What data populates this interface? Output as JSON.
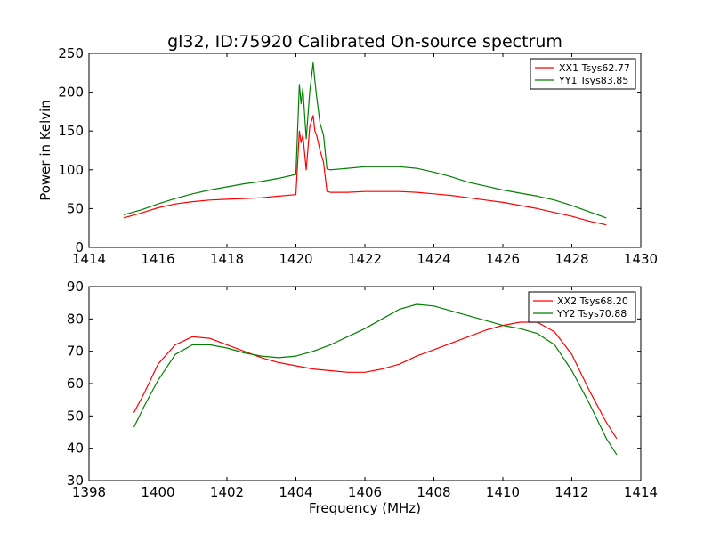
{
  "chart_data": [
    {
      "type": "line",
      "title": "gl32, ID:75920 Calibrated On-source spectrum",
      "xlabel": "",
      "ylabel": "Power in Kelvin",
      "xlim": [
        1414,
        1430
      ],
      "ylim": [
        0,
        250
      ],
      "xticks": [
        1414,
        1416,
        1418,
        1420,
        1422,
        1424,
        1426,
        1428,
        1430
      ],
      "yticks": [
        0,
        50,
        100,
        150,
        200,
        250
      ],
      "grid": false,
      "legend_position": "top-right",
      "series": [
        {
          "name": "XX1 Tsys62.77",
          "color": "#ff0000",
          "points": [
            [
              1415.0,
              38
            ],
            [
              1415.5,
              44
            ],
            [
              1416.0,
              51
            ],
            [
              1416.5,
              56
            ],
            [
              1417.0,
              59
            ],
            [
              1417.5,
              61
            ],
            [
              1418.0,
              62
            ],
            [
              1418.5,
              63
            ],
            [
              1419.0,
              64
            ],
            [
              1419.5,
              66
            ],
            [
              1420.0,
              68
            ],
            [
              1420.1,
              150
            ],
            [
              1420.15,
              135
            ],
            [
              1420.2,
              145
            ],
            [
              1420.3,
              100
            ],
            [
              1420.4,
              155
            ],
            [
              1420.5,
              170
            ],
            [
              1420.55,
              150
            ],
            [
              1420.6,
              145
            ],
            [
              1420.7,
              125
            ],
            [
              1420.8,
              110
            ],
            [
              1420.9,
              72
            ],
            [
              1421.0,
              71
            ],
            [
              1421.5,
              71
            ],
            [
              1422.0,
              72
            ],
            [
              1422.5,
              72
            ],
            [
              1423.0,
              72
            ],
            [
              1423.5,
              71
            ],
            [
              1424.0,
              69
            ],
            [
              1424.5,
              67
            ],
            [
              1425.0,
              64
            ],
            [
              1425.5,
              61
            ],
            [
              1426.0,
              58
            ],
            [
              1426.5,
              54
            ],
            [
              1427.0,
              50
            ],
            [
              1427.5,
              45
            ],
            [
              1428.0,
              40
            ],
            [
              1428.5,
              34
            ],
            [
              1429.0,
              29
            ]
          ]
        },
        {
          "name": "YY1 Tsys83.85",
          "color": "#008000",
          "points": [
            [
              1415.0,
              42
            ],
            [
              1415.5,
              48
            ],
            [
              1416.0,
              56
            ],
            [
              1416.5,
              63
            ],
            [
              1417.0,
              69
            ],
            [
              1417.5,
              74
            ],
            [
              1418.0,
              78
            ],
            [
              1418.5,
              82
            ],
            [
              1419.0,
              85
            ],
            [
              1419.5,
              89
            ],
            [
              1420.0,
              94
            ],
            [
              1420.1,
              210
            ],
            [
              1420.15,
              185
            ],
            [
              1420.2,
              205
            ],
            [
              1420.3,
              140
            ],
            [
              1420.4,
              200
            ],
            [
              1420.5,
              238
            ],
            [
              1420.55,
              215
            ],
            [
              1420.6,
              195
            ],
            [
              1420.7,
              160
            ],
            [
              1420.8,
              145
            ],
            [
              1420.9,
              101
            ],
            [
              1421.0,
              100
            ],
            [
              1421.5,
              102
            ],
            [
              1422.0,
              104
            ],
            [
              1422.5,
              104
            ],
            [
              1423.0,
              104
            ],
            [
              1423.5,
              102
            ],
            [
              1424.0,
              97
            ],
            [
              1424.5,
              91
            ],
            [
              1425.0,
              84
            ],
            [
              1425.5,
              79
            ],
            [
              1426.0,
              74
            ],
            [
              1426.5,
              70
            ],
            [
              1427.0,
              66
            ],
            [
              1427.5,
              61
            ],
            [
              1428.0,
              54
            ],
            [
              1428.5,
              46
            ],
            [
              1429.0,
              38
            ]
          ]
        }
      ]
    },
    {
      "type": "line",
      "title": "",
      "xlabel": "Frequency (MHz)",
      "ylabel": "",
      "xlim": [
        1398,
        1414
      ],
      "ylim": [
        30,
        90
      ],
      "xticks": [
        1398,
        1400,
        1402,
        1404,
        1406,
        1408,
        1410,
        1412,
        1414
      ],
      "yticks": [
        30,
        40,
        50,
        60,
        70,
        80,
        90
      ],
      "grid": false,
      "legend_position": "top-right",
      "series": [
        {
          "name": "XX2 Tsys68.20",
          "color": "#ff0000",
          "points": [
            [
              1399.3,
              51
            ],
            [
              1399.6,
              57
            ],
            [
              1400.0,
              66
            ],
            [
              1400.5,
              72
            ],
            [
              1401.0,
              74.5
            ],
            [
              1401.5,
              74
            ],
            [
              1402.0,
              72
            ],
            [
              1402.5,
              70
            ],
            [
              1403.0,
              68
            ],
            [
              1403.5,
              66.5
            ],
            [
              1404.0,
              65.5
            ],
            [
              1404.5,
              64.5
            ],
            [
              1405.0,
              64
            ],
            [
              1405.5,
              63.5
            ],
            [
              1406.0,
              63.5
            ],
            [
              1406.5,
              64.5
            ],
            [
              1407.0,
              66
            ],
            [
              1407.5,
              68.5
            ],
            [
              1408.0,
              70.5
            ],
            [
              1408.5,
              72.5
            ],
            [
              1409.0,
              74.5
            ],
            [
              1409.5,
              76.5
            ],
            [
              1410.0,
              78
            ],
            [
              1410.5,
              79
            ],
            [
              1411.0,
              79
            ],
            [
              1411.5,
              76
            ],
            [
              1412.0,
              69
            ],
            [
              1412.5,
              58
            ],
            [
              1413.0,
              48
            ],
            [
              1413.3,
              43
            ]
          ]
        },
        {
          "name": "YY2 Tsys70.88",
          "color": "#008000",
          "points": [
            [
              1399.3,
              46.5
            ],
            [
              1399.6,
              53
            ],
            [
              1400.0,
              61
            ],
            [
              1400.5,
              69
            ],
            [
              1401.0,
              72
            ],
            [
              1401.5,
              72
            ],
            [
              1402.0,
              71
            ],
            [
              1402.5,
              69.5
            ],
            [
              1403.0,
              68.5
            ],
            [
              1403.5,
              68
            ],
            [
              1404.0,
              68.5
            ],
            [
              1404.5,
              70
            ],
            [
              1405.0,
              72
            ],
            [
              1405.5,
              74.5
            ],
            [
              1406.0,
              77
            ],
            [
              1406.5,
              80
            ],
            [
              1407.0,
              83
            ],
            [
              1407.5,
              84.5
            ],
            [
              1408.0,
              84
            ],
            [
              1408.5,
              82.5
            ],
            [
              1409.0,
              81
            ],
            [
              1409.5,
              79.5
            ],
            [
              1410.0,
              78
            ],
            [
              1410.5,
              77
            ],
            [
              1411.0,
              75.5
            ],
            [
              1411.5,
              72
            ],
            [
              1412.0,
              64
            ],
            [
              1412.5,
              54
            ],
            [
              1413.0,
              43
            ],
            [
              1413.3,
              38
            ]
          ]
        }
      ]
    }
  ]
}
